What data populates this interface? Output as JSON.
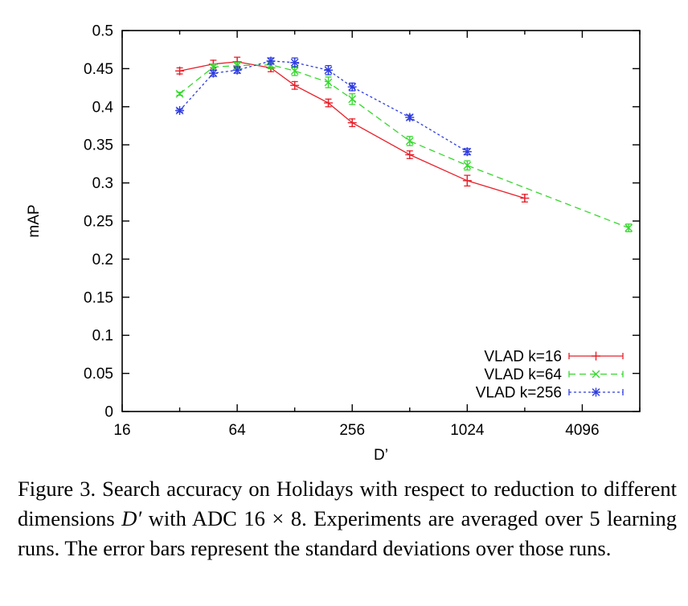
{
  "chart_data": {
    "type": "line",
    "xlabel": "D’",
    "ylabel": "mAP",
    "xscale": "log2",
    "xlim": [
      16,
      8192
    ],
    "ylim": [
      0,
      0.5
    ],
    "xticks": [
      16,
      64,
      256,
      1024,
      4096
    ],
    "xtick_labels": [
      "16",
      "64",
      "256",
      "1024",
      "4096"
    ],
    "yticks": [
      0,
      0.05,
      0.1,
      0.15,
      0.2,
      0.25,
      0.3,
      0.35,
      0.4,
      0.45,
      0.5
    ],
    "ytick_labels": [
      "0",
      "0.05",
      "0.1",
      "0.15",
      "0.2",
      "0.25",
      "0.3",
      "0.35",
      "0.4",
      "0.45",
      "0.5"
    ],
    "grid": false,
    "legend_position": "bottom-right",
    "error_bars": true,
    "series": [
      {
        "name": "VLAD k=16",
        "color": "#e8202a",
        "marker": "plus",
        "dash": "solid",
        "points": [
          {
            "x": 32,
            "y": 0.447,
            "err": 0.004
          },
          {
            "x": 48,
            "y": 0.456,
            "err": 0.005
          },
          {
            "x": 64,
            "y": 0.459,
            "err": 0.006
          },
          {
            "x": 96,
            "y": 0.451,
            "err": 0.005
          },
          {
            "x": 128,
            "y": 0.428,
            "err": 0.005
          },
          {
            "x": 192,
            "y": 0.405,
            "err": 0.005
          },
          {
            "x": 256,
            "y": 0.379,
            "err": 0.005
          },
          {
            "x": 512,
            "y": 0.337,
            "err": 0.005
          },
          {
            "x": 1024,
            "y": 0.303,
            "err": 0.007
          },
          {
            "x": 2048,
            "y": 0.28,
            "err": 0.005
          }
        ]
      },
      {
        "name": "VLAD k=64",
        "color": "#36d82e",
        "marker": "x",
        "dash": "dashed",
        "points": [
          {
            "x": 32,
            "y": 0.417,
            "err": 0.002
          },
          {
            "x": 48,
            "y": 0.452,
            "err": 0.004
          },
          {
            "x": 64,
            "y": 0.454,
            "err": 0.004
          },
          {
            "x": 96,
            "y": 0.455,
            "err": 0.005
          },
          {
            "x": 128,
            "y": 0.447,
            "err": 0.006
          },
          {
            "x": 192,
            "y": 0.432,
            "err": 0.007
          },
          {
            "x": 256,
            "y": 0.41,
            "err": 0.007
          },
          {
            "x": 512,
            "y": 0.355,
            "err": 0.006
          },
          {
            "x": 1024,
            "y": 0.323,
            "err": 0.006
          },
          {
            "x": 7168,
            "y": 0.241,
            "err": 0.005
          }
        ]
      },
      {
        "name": "VLAD k=256",
        "color": "#2f3ce0",
        "marker": "star",
        "dash": "dotted",
        "points": [
          {
            "x": 32,
            "y": 0.395,
            "err": 0.002
          },
          {
            "x": 48,
            "y": 0.444,
            "err": 0.004
          },
          {
            "x": 64,
            "y": 0.448,
            "err": 0.004
          },
          {
            "x": 96,
            "y": 0.46,
            "err": 0.004
          },
          {
            "x": 128,
            "y": 0.458,
            "err": 0.006
          },
          {
            "x": 192,
            "y": 0.448,
            "err": 0.006
          },
          {
            "x": 256,
            "y": 0.426,
            "err": 0.005
          },
          {
            "x": 512,
            "y": 0.386,
            "err": 0.003
          },
          {
            "x": 1024,
            "y": 0.341,
            "err": 0.004
          }
        ]
      }
    ]
  },
  "caption": {
    "segments": [
      {
        "text": "Figure 3. Search accuracy on Holidays with respect to reduction to different dimensions ",
        "italic": false
      },
      {
        "text": "D′",
        "italic": true
      },
      {
        "text": " with ADC 16 × 8. Experiments are averaged over 5 learning runs. The error bars represent the standard deviations over those runs.",
        "italic": false
      }
    ]
  }
}
